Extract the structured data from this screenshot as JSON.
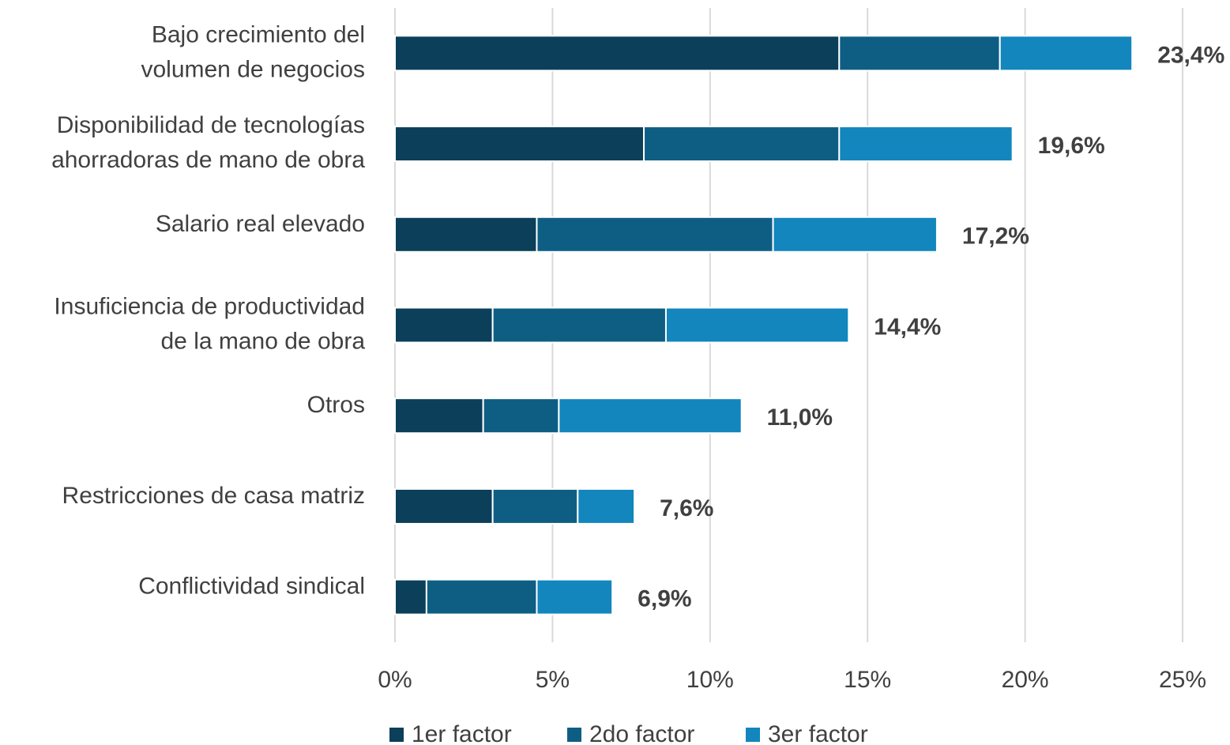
{
  "chart_data": {
    "type": "stacked_barh",
    "categories": [
      [
        "Bajo crecimiento del",
        "volumen de negocios"
      ],
      [
        "Disponibilidad de tecnologías",
        "ahorradoras de mano de obra"
      ],
      [
        "Salario real elevado"
      ],
      [
        "Insuficiencia de productividad",
        "de la mano de obra"
      ],
      [
        "Otros"
      ],
      [
        "Restricciones de casa matriz"
      ],
      [
        "Conflictividad sindical"
      ]
    ],
    "series": [
      {
        "name": "1er factor",
        "color": "#0b3f5a",
        "values": [
          14.1,
          7.9,
          4.5,
          3.1,
          2.8,
          3.1,
          1.0
        ]
      },
      {
        "name": "2do factor",
        "color": "#0e5e84",
        "values": [
          5.1,
          6.2,
          7.5,
          5.5,
          2.4,
          2.7,
          3.5
        ]
      },
      {
        "name": "3er factor",
        "color": "#1286bd",
        "values": [
          4.2,
          5.5,
          5.2,
          5.8,
          5.8,
          1.8,
          2.4
        ]
      }
    ],
    "totals": [
      23.4,
      19.6,
      17.2,
      14.4,
      11.0,
      7.6,
      6.9
    ],
    "total_labels": [
      "23,4%",
      "19,6%",
      "17,2%",
      "14,4%",
      "11,0%",
      "7,6%",
      "6,9%"
    ],
    "xlim": [
      0,
      25
    ],
    "xticks": [
      {
        "value": 0,
        "label": "0%"
      },
      {
        "value": 5,
        "label": "5%"
      },
      {
        "value": 10,
        "label": "10%"
      },
      {
        "value": 15,
        "label": "15%"
      },
      {
        "value": 20,
        "label": "20%"
      },
      {
        "value": 25,
        "label": "25%"
      }
    ],
    "grid": true,
    "legend": "bottom"
  }
}
